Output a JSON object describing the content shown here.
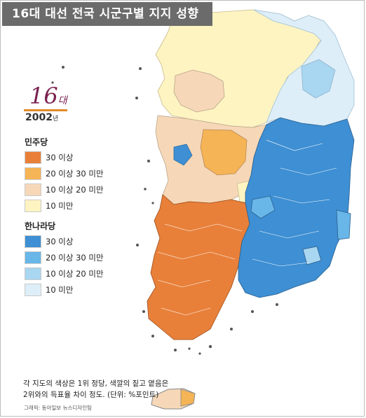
{
  "title": "16대 대선 전국 시군구별 지지 성향",
  "emblem": {
    "number": "16",
    "suffix": "대",
    "year": "2002",
    "year_suffix": "년"
  },
  "legend": {
    "group1": {
      "name": "민주당",
      "items": [
        {
          "label": "30 이상",
          "color": "#e8803a"
        },
        {
          "label": "20 이상 30 미만",
          "color": "#f5b455"
        },
        {
          "label": "10 이상 20 미만",
          "color": "#f6d8b8"
        },
        {
          "label": "10 미만",
          "color": "#fdf4c2"
        }
      ]
    },
    "group2": {
      "name": "한나라당",
      "items": [
        {
          "label": "30 이상",
          "color": "#3e8fd3"
        },
        {
          "label": "20 이상 30 미만",
          "color": "#69b6e8"
        },
        {
          "label": "10 이상 20 미만",
          "color": "#a9d6f0"
        },
        {
          "label": "10 미만",
          "color": "#ddeef8"
        }
      ]
    }
  },
  "note": {
    "line1": "각 지도의 색상은 1위 정당, 색깔의 짙고 옅음은",
    "line2": "2위와의 득표율 차이 정도. (단위: %포인트)"
  },
  "credit": "그래픽: 동아일보 뉴스디자인팀"
}
